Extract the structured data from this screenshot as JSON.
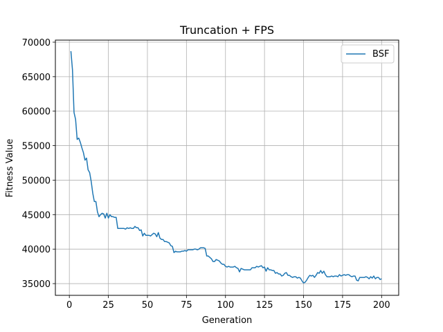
{
  "chart_data": {
    "type": "line",
    "title": "Truncation + FPS",
    "xlabel": "Generation",
    "ylabel": "Fitness Value",
    "xlim": [
      -8.95,
      210.95
    ],
    "ylim": [
      33300,
      70300
    ],
    "xticks": [
      0,
      25,
      50,
      75,
      100,
      125,
      150,
      175,
      200
    ],
    "yticks": [
      35000,
      40000,
      45000,
      50000,
      55000,
      60000,
      65000,
      70000
    ],
    "grid": true,
    "legend_position": "top-right",
    "series": [
      {
        "name": "BSF",
        "color": "#1f77b4",
        "points": [
          [
            1,
            68700
          ],
          [
            2,
            66000
          ],
          [
            3,
            59800
          ],
          [
            4,
            58800
          ],
          [
            5,
            55900
          ],
          [
            6,
            56100
          ],
          [
            7,
            55500
          ],
          [
            8,
            54700
          ],
          [
            9,
            54000
          ],
          [
            10,
            52900
          ],
          [
            11,
            53200
          ],
          [
            12,
            51500
          ],
          [
            13,
            51100
          ],
          [
            14,
            49800
          ],
          [
            15,
            48100
          ],
          [
            16,
            46900
          ],
          [
            17,
            46900
          ],
          [
            18,
            45400
          ],
          [
            19,
            44700
          ],
          [
            20,
            45000
          ],
          [
            21,
            45200
          ],
          [
            22,
            45100
          ],
          [
            23,
            44500
          ],
          [
            24,
            45200
          ],
          [
            25,
            44500
          ],
          [
            26,
            45000
          ],
          [
            27,
            44700
          ],
          [
            28,
            44700
          ],
          [
            29,
            44600
          ],
          [
            30,
            44600
          ],
          [
            31,
            43000
          ],
          [
            32,
            43000
          ],
          [
            33,
            43000
          ],
          [
            34,
            43000
          ],
          [
            35,
            43000
          ],
          [
            36,
            42900
          ],
          [
            37,
            43100
          ],
          [
            38,
            43000
          ],
          [
            39,
            43100
          ],
          [
            40,
            43000
          ],
          [
            41,
            43000
          ],
          [
            42,
            43300
          ],
          [
            43,
            43100
          ],
          [
            44,
            43100
          ],
          [
            45,
            42700
          ],
          [
            46,
            42800
          ],
          [
            47,
            41900
          ],
          [
            48,
            42300
          ],
          [
            49,
            42000
          ],
          [
            50,
            42000
          ],
          [
            51,
            42000
          ],
          [
            52,
            41900
          ],
          [
            53,
            42100
          ],
          [
            54,
            42300
          ],
          [
            55,
            42200
          ],
          [
            56,
            41800
          ],
          [
            57,
            42400
          ],
          [
            58,
            41600
          ],
          [
            59,
            41400
          ],
          [
            60,
            41400
          ],
          [
            61,
            41100
          ],
          [
            62,
            41100
          ],
          [
            63,
            41000
          ],
          [
            64,
            40900
          ],
          [
            65,
            40500
          ],
          [
            66,
            40400
          ],
          [
            67,
            39500
          ],
          [
            68,
            39700
          ],
          [
            69,
            39600
          ],
          [
            70,
            39600
          ],
          [
            71,
            39600
          ],
          [
            72,
            39700
          ],
          [
            73,
            39700
          ],
          [
            74,
            39800
          ],
          [
            75,
            39700
          ],
          [
            76,
            39900
          ],
          [
            77,
            39900
          ],
          [
            78,
            39900
          ],
          [
            79,
            39900
          ],
          [
            80,
            40000
          ],
          [
            81,
            40000
          ],
          [
            82,
            39900
          ],
          [
            83,
            40000
          ],
          [
            84,
            40200
          ],
          [
            85,
            40200
          ],
          [
            86,
            40200
          ],
          [
            87,
            40100
          ],
          [
            88,
            39000
          ],
          [
            89,
            39000
          ],
          [
            90,
            38800
          ],
          [
            91,
            38600
          ],
          [
            92,
            38200
          ],
          [
            93,
            38200
          ],
          [
            94,
            38500
          ],
          [
            95,
            38400
          ],
          [
            96,
            38300
          ],
          [
            97,
            38000
          ],
          [
            98,
            37800
          ],
          [
            99,
            37800
          ],
          [
            100,
            37500
          ],
          [
            101,
            37400
          ],
          [
            102,
            37500
          ],
          [
            103,
            37400
          ],
          [
            104,
            37400
          ],
          [
            105,
            37400
          ],
          [
            106,
            37500
          ],
          [
            107,
            37300
          ],
          [
            108,
            37200
          ],
          [
            109,
            36700
          ],
          [
            110,
            37200
          ],
          [
            111,
            37100
          ],
          [
            112,
            37000
          ],
          [
            113,
            37000
          ],
          [
            114,
            37000
          ],
          [
            115,
            37000
          ],
          [
            116,
            37000
          ],
          [
            117,
            37300
          ],
          [
            118,
            37300
          ],
          [
            119,
            37300
          ],
          [
            120,
            37500
          ],
          [
            121,
            37400
          ],
          [
            122,
            37500
          ],
          [
            123,
            37600
          ],
          [
            124,
            37300
          ],
          [
            125,
            37400
          ],
          [
            126,
            36800
          ],
          [
            127,
            37300
          ],
          [
            128,
            37000
          ],
          [
            129,
            37000
          ],
          [
            130,
            36900
          ],
          [
            131,
            36900
          ],
          [
            132,
            36500
          ],
          [
            133,
            36600
          ],
          [
            134,
            36400
          ],
          [
            135,
            36400
          ],
          [
            136,
            36100
          ],
          [
            137,
            36200
          ],
          [
            138,
            36500
          ],
          [
            139,
            36600
          ],
          [
            140,
            36200
          ],
          [
            141,
            36200
          ],
          [
            142,
            36000
          ],
          [
            143,
            35900
          ],
          [
            144,
            36000
          ],
          [
            145,
            36000
          ],
          [
            146,
            35800
          ],
          [
            147,
            35900
          ],
          [
            148,
            35800
          ],
          [
            149,
            35400
          ],
          [
            150,
            35100
          ],
          [
            151,
            35200
          ],
          [
            152,
            35500
          ],
          [
            153,
            35900
          ],
          [
            154,
            36200
          ],
          [
            155,
            36100
          ],
          [
            156,
            36200
          ],
          [
            157,
            35900
          ],
          [
            158,
            36200
          ],
          [
            159,
            36600
          ],
          [
            160,
            36500
          ],
          [
            161,
            36900
          ],
          [
            162,
            36500
          ],
          [
            163,
            36800
          ],
          [
            164,
            36300
          ],
          [
            165,
            36000
          ],
          [
            166,
            36000
          ],
          [
            167,
            36000
          ],
          [
            168,
            36100
          ],
          [
            169,
            36000
          ],
          [
            170,
            36100
          ],
          [
            171,
            36100
          ],
          [
            172,
            36000
          ],
          [
            173,
            36300
          ],
          [
            174,
            36100
          ],
          [
            175,
            36200
          ],
          [
            176,
            36300
          ],
          [
            177,
            36200
          ],
          [
            178,
            36300
          ],
          [
            179,
            36300
          ],
          [
            180,
            36100
          ],
          [
            181,
            36000
          ],
          [
            182,
            36100
          ],
          [
            183,
            36100
          ],
          [
            184,
            35500
          ],
          [
            185,
            35400
          ],
          [
            186,
            35900
          ],
          [
            187,
            35900
          ],
          [
            188,
            35900
          ],
          [
            189,
            35900
          ],
          [
            190,
            36000
          ],
          [
            191,
            35900
          ],
          [
            192,
            35700
          ],
          [
            193,
            36000
          ],
          [
            194,
            35800
          ],
          [
            195,
            36100
          ],
          [
            196,
            35700
          ],
          [
            197,
            35900
          ],
          [
            198,
            35900
          ],
          [
            199,
            35600
          ],
          [
            200,
            35700
          ]
        ]
      }
    ]
  }
}
